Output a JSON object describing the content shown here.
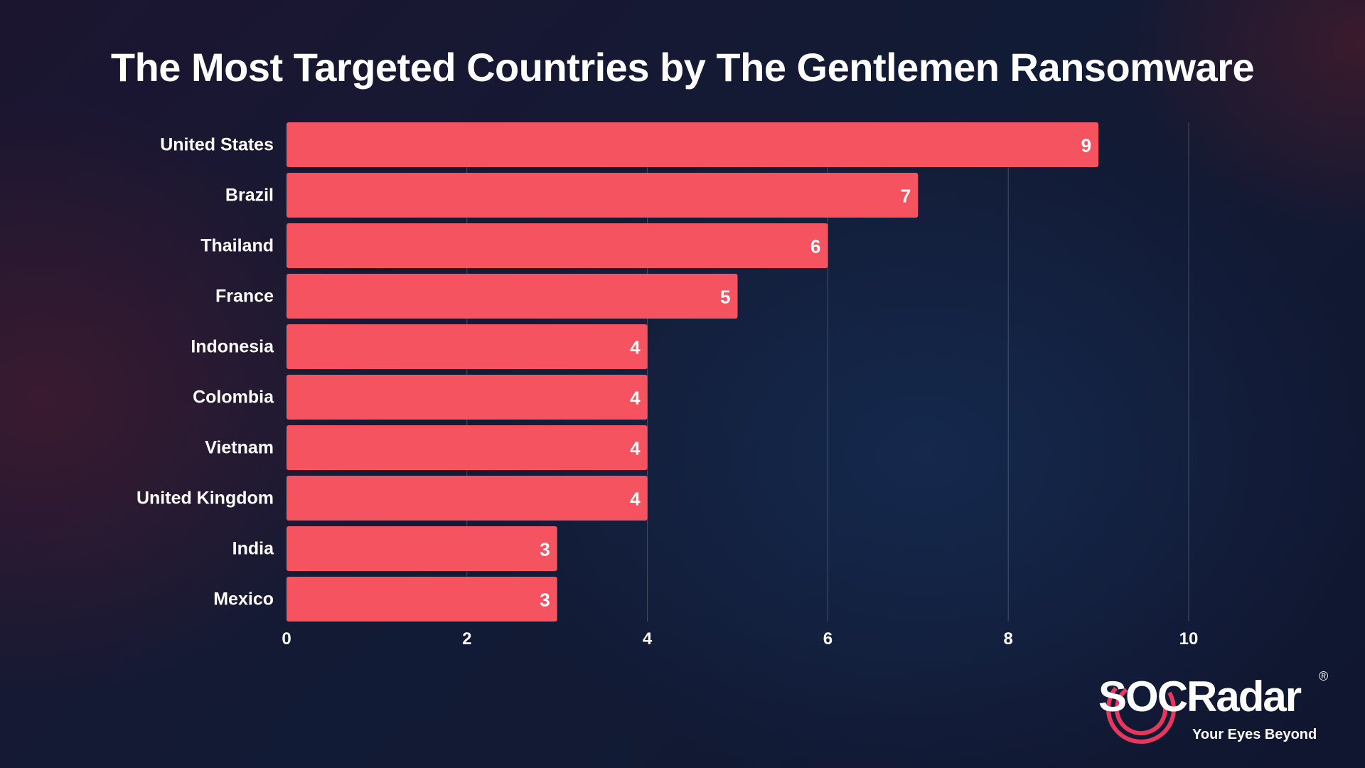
{
  "chart_data": {
    "type": "bar",
    "orientation": "horizontal",
    "title": "The Most Targeted Countries by The Gentlemen Ransomware",
    "categories": [
      "United States",
      "Brazil",
      "Thailand",
      "France",
      "Indonesia",
      "Colombia",
      "Vietnam",
      "United Kingdom",
      "India",
      "Mexico"
    ],
    "values": [
      9,
      7,
      6,
      5,
      4,
      4,
      4,
      4,
      3,
      3
    ],
    "xlim": [
      0,
      10
    ],
    "xticks": [
      "0",
      "2",
      "4",
      "6",
      "8",
      "10"
    ],
    "xlabel": "",
    "ylabel": "",
    "grid": "vertical",
    "bar_color": "#f5535f",
    "data_labels": true
  },
  "logo": {
    "brand": "SOCRadar",
    "registered": "®",
    "tagline": "Your Eyes Beyond",
    "accent_color": "#e8365c"
  }
}
